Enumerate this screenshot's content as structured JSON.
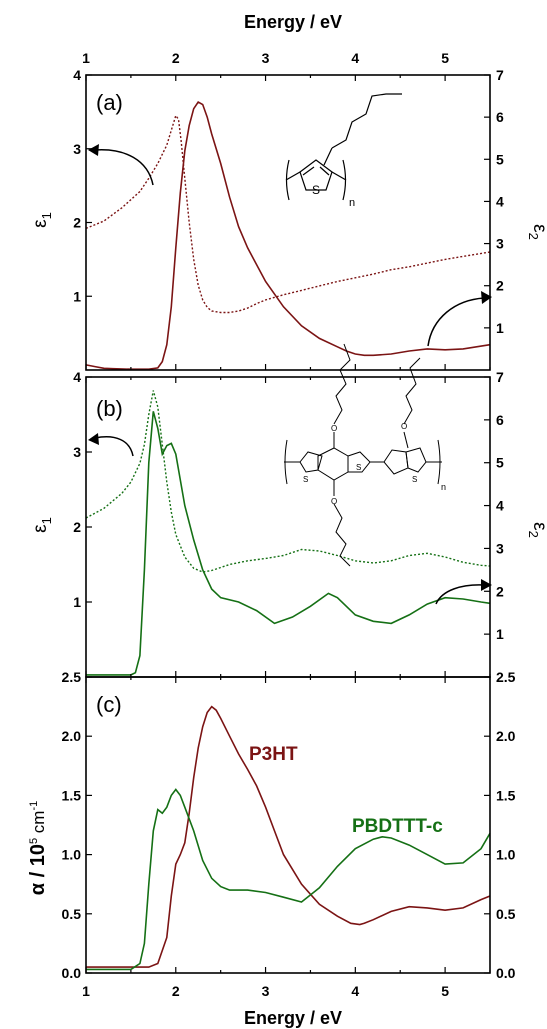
{
  "chart_data": {
    "type": "line",
    "x_axis": {
      "top_label": "Energy / eV",
      "bottom_label": "Energy / eV",
      "range": [
        1,
        5.5
      ],
      "ticks": [
        "1",
        "2",
        "3",
        "4",
        "5"
      ]
    },
    "colors": {
      "p3ht": "#7b1414",
      "pbdttt": "#157015"
    },
    "panels": [
      {
        "id": "a",
        "label": "(a)",
        "left_axis": {
          "symbol": "ε",
          "subscript": "1",
          "range": [
            0,
            4
          ],
          "ticks": [
            "1",
            "2",
            "3",
            "4"
          ]
        },
        "right_axis": {
          "symbol": "ε",
          "subscript": "2",
          "range": [
            0,
            7
          ],
          "ticks": [
            "1",
            "2",
            "3",
            "4",
            "5",
            "6",
            "7"
          ]
        },
        "series": [
          {
            "role": "eps1",
            "color": "#7b1414",
            "style": "dotted",
            "axis": "left",
            "x": [
              1.0,
              1.2,
              1.4,
              1.6,
              1.7,
              1.8,
              1.9,
              1.95,
              2.0,
              2.03,
              2.06,
              2.1,
              2.15,
              2.2,
              2.25,
              2.3,
              2.35,
              2.4,
              2.5,
              2.6,
              2.7,
              2.8,
              2.9,
              3.0,
              3.2,
              3.4,
              3.6,
              3.8,
              4.0,
              4.2,
              4.4,
              4.6,
              4.8,
              5.0,
              5.2,
              5.5
            ],
            "y": [
              1.92,
              2.02,
              2.2,
              2.42,
              2.6,
              2.8,
              3.05,
              3.25,
              3.45,
              3.4,
              3.1,
              2.6,
              2.0,
              1.5,
              1.15,
              0.95,
              0.85,
              0.8,
              0.78,
              0.78,
              0.8,
              0.84,
              0.9,
              0.95,
              1.02,
              1.08,
              1.14,
              1.2,
              1.25,
              1.3,
              1.36,
              1.4,
              1.45,
              1.5,
              1.54,
              1.6
            ]
          },
          {
            "role": "eps2",
            "color": "#7b1414",
            "style": "solid",
            "axis": "right",
            "x": [
              1.0,
              1.1,
              1.2,
              1.3,
              1.5,
              1.6,
              1.7,
              1.8,
              1.85,
              1.9,
              1.95,
              2.0,
              2.05,
              2.1,
              2.15,
              2.2,
              2.25,
              2.3,
              2.35,
              2.4,
              2.5,
              2.6,
              2.7,
              2.8,
              3.0,
              3.2,
              3.4,
              3.6,
              3.8,
              3.9,
              4.0,
              4.1,
              4.2,
              4.4,
              4.6,
              4.8,
              5.0,
              5.2,
              5.5
            ],
            "y": [
              0.12,
              0.08,
              0.04,
              0.03,
              0.02,
              0.02,
              0.02,
              0.05,
              0.2,
              0.6,
              1.5,
              2.9,
              4.2,
              5.2,
              5.8,
              6.2,
              6.36,
              6.3,
              6.0,
              5.6,
              4.9,
              4.1,
              3.4,
              2.9,
              2.1,
              1.5,
              1.05,
              0.75,
              0.55,
              0.45,
              0.38,
              0.35,
              0.35,
              0.38,
              0.45,
              0.5,
              0.48,
              0.5,
              0.6
            ]
          }
        ]
      },
      {
        "id": "b",
        "label": "(b)",
        "left_axis": {
          "symbol": "ε",
          "subscript": "1",
          "range": [
            0,
            4
          ],
          "ticks": [
            "1",
            "2",
            "3",
            "4"
          ]
        },
        "right_axis": {
          "symbol": "ε",
          "subscript": "2",
          "range": [
            0,
            7
          ],
          "ticks": [
            "1",
            "2",
            "3",
            "4",
            "5",
            "6",
            "7"
          ]
        },
        "series": [
          {
            "role": "eps1",
            "color": "#157015",
            "style": "dotted",
            "axis": "left",
            "x": [
              1.0,
              1.2,
              1.4,
              1.5,
              1.6,
              1.65,
              1.7,
              1.75,
              1.8,
              1.85,
              1.9,
              1.95,
              2.0,
              2.05,
              2.1,
              2.2,
              2.3,
              2.4,
              2.5,
              2.6,
              2.8,
              3.0,
              3.2,
              3.4,
              3.6,
              3.8,
              4.0,
              4.2,
              4.4,
              4.6,
              4.8,
              5.0,
              5.2,
              5.4,
              5.5
            ],
            "y": [
              2.12,
              2.25,
              2.45,
              2.6,
              2.85,
              3.1,
              3.5,
              3.82,
              3.6,
              3.1,
              2.6,
              2.2,
              1.9,
              1.75,
              1.6,
              1.45,
              1.4,
              1.42,
              1.46,
              1.5,
              1.55,
              1.58,
              1.62,
              1.7,
              1.68,
              1.62,
              1.55,
              1.52,
              1.55,
              1.62,
              1.65,
              1.6,
              1.53,
              1.49,
              1.48
            ]
          },
          {
            "role": "eps2",
            "color": "#157015",
            "style": "solid",
            "axis": "right",
            "x": [
              1.0,
              1.2,
              1.4,
              1.5,
              1.55,
              1.6,
              1.65,
              1.7,
              1.75,
              1.8,
              1.85,
              1.9,
              1.95,
              2.0,
              2.05,
              2.1,
              2.2,
              2.3,
              2.4,
              2.5,
              2.7,
              2.9,
              3.1,
              3.3,
              3.5,
              3.7,
              3.8,
              4.0,
              4.2,
              4.4,
              4.6,
              4.8,
              5.0,
              5.2,
              5.4,
              5.5
            ],
            "y": [
              0.05,
              0.05,
              0.05,
              0.05,
              0.1,
              0.5,
              2.5,
              5.0,
              6.2,
              5.8,
              5.2,
              5.4,
              5.45,
              5.2,
              4.6,
              4.0,
              3.2,
              2.5,
              2.05,
              1.85,
              1.75,
              1.55,
              1.25,
              1.4,
              1.65,
              1.95,
              1.85,
              1.45,
              1.3,
              1.25,
              1.45,
              1.7,
              1.85,
              1.82,
              1.75,
              1.72
            ]
          }
        ]
      },
      {
        "id": "c",
        "label": "(c)",
        "left_axis": {
          "symbol": "α / 10",
          "superscript": "5",
          "unit": " cm",
          "unit_superscript": "-1",
          "range": [
            0,
            2.5
          ],
          "ticks": [
            "0.0",
            "0.5",
            "1.0",
            "1.5",
            "2.0",
            "2.5"
          ]
        },
        "right_axis": {
          "range": [
            0,
            2.5
          ],
          "ticks": [
            "0.0",
            "0.5",
            "1.0",
            "1.5",
            "2.0",
            "2.5"
          ]
        },
        "series": [
          {
            "name": "P3HT",
            "color": "#7b1414",
            "style": "solid",
            "axis": "left",
            "x": [
              1.0,
              1.2,
              1.4,
              1.6,
              1.7,
              1.8,
              1.9,
              1.95,
              2.0,
              2.05,
              2.1,
              2.15,
              2.2,
              2.25,
              2.3,
              2.35,
              2.4,
              2.45,
              2.5,
              2.6,
              2.7,
              2.8,
              2.9,
              3.0,
              3.1,
              3.2,
              3.4,
              3.6,
              3.8,
              3.95,
              4.05,
              4.1,
              4.2,
              4.4,
              4.6,
              4.8,
              5.0,
              5.2,
              5.4,
              5.5
            ],
            "y": [
              0.05,
              0.05,
              0.05,
              0.05,
              0.05,
              0.08,
              0.3,
              0.65,
              0.92,
              1.0,
              1.1,
              1.35,
              1.65,
              1.9,
              2.08,
              2.2,
              2.25,
              2.22,
              2.15,
              2.0,
              1.85,
              1.72,
              1.58,
              1.4,
              1.2,
              1.0,
              0.75,
              0.58,
              0.48,
              0.42,
              0.41,
              0.42,
              0.45,
              0.52,
              0.56,
              0.55,
              0.53,
              0.55,
              0.62,
              0.65
            ]
          },
          {
            "name": "PBDTTT-c",
            "color": "#157015",
            "style": "solid",
            "axis": "left",
            "x": [
              1.0,
              1.2,
              1.4,
              1.5,
              1.6,
              1.65,
              1.7,
              1.75,
              1.8,
              1.85,
              1.9,
              1.95,
              2.0,
              2.05,
              2.1,
              2.2,
              2.3,
              2.4,
              2.5,
              2.6,
              2.8,
              3.0,
              3.2,
              3.4,
              3.6,
              3.8,
              4.0,
              4.2,
              4.3,
              4.4,
              4.6,
              4.8,
              5.0,
              5.2,
              5.4,
              5.5
            ],
            "y": [
              0.03,
              0.03,
              0.03,
              0.03,
              0.08,
              0.25,
              0.75,
              1.2,
              1.38,
              1.35,
              1.4,
              1.5,
              1.55,
              1.5,
              1.4,
              1.2,
              0.95,
              0.8,
              0.73,
              0.7,
              0.7,
              0.68,
              0.64,
              0.6,
              0.72,
              0.9,
              1.05,
              1.13,
              1.15,
              1.14,
              1.08,
              1.0,
              0.92,
              0.93,
              1.05,
              1.18
            ]
          }
        ]
      }
    ]
  }
}
